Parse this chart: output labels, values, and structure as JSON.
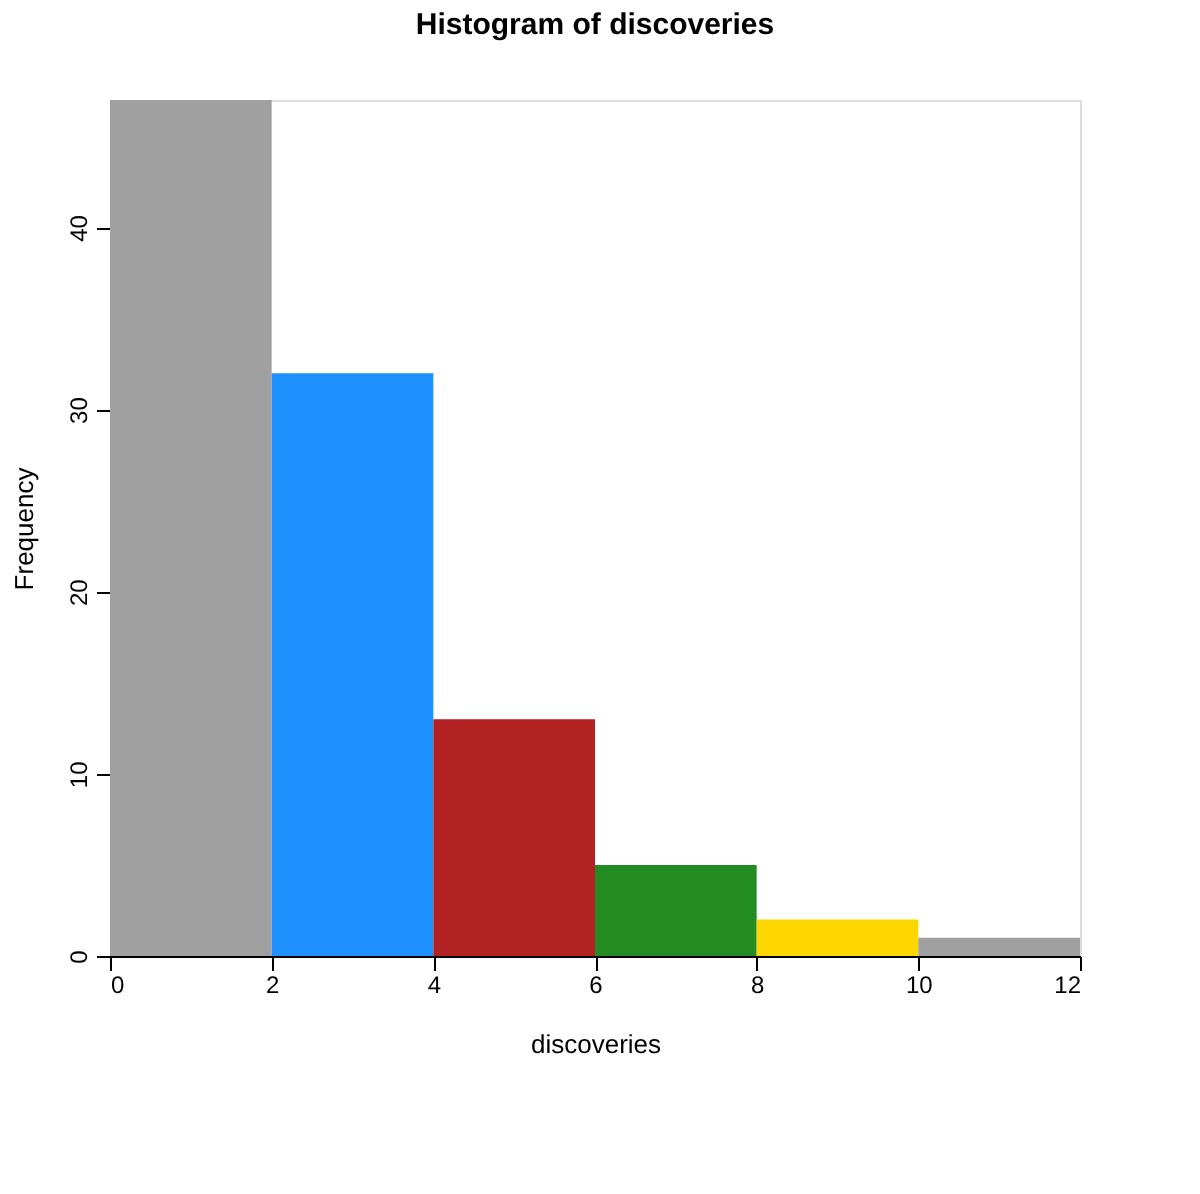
{
  "chart_data": {
    "type": "histogram",
    "title": "Histogram of discoveries",
    "xlabel": "discoveries",
    "ylabel": "Frequency",
    "bins": [
      0,
      2,
      4,
      6,
      8,
      10,
      12
    ],
    "values": [
      47,
      32,
      13,
      5,
      2,
      1
    ],
    "colors": [
      "#a0a0a0",
      "#1e90ff",
      "#b22222",
      "#228b22",
      "#ffd700",
      "#a0a0a0"
    ],
    "xlim": [
      0,
      12
    ],
    "xticks": [
      0,
      2,
      4,
      6,
      8,
      10,
      12
    ],
    "ylim": [
      0,
      47
    ],
    "yticks": [
      0,
      10,
      20,
      30,
      40
    ],
    "grid": false,
    "legend": false
  }
}
